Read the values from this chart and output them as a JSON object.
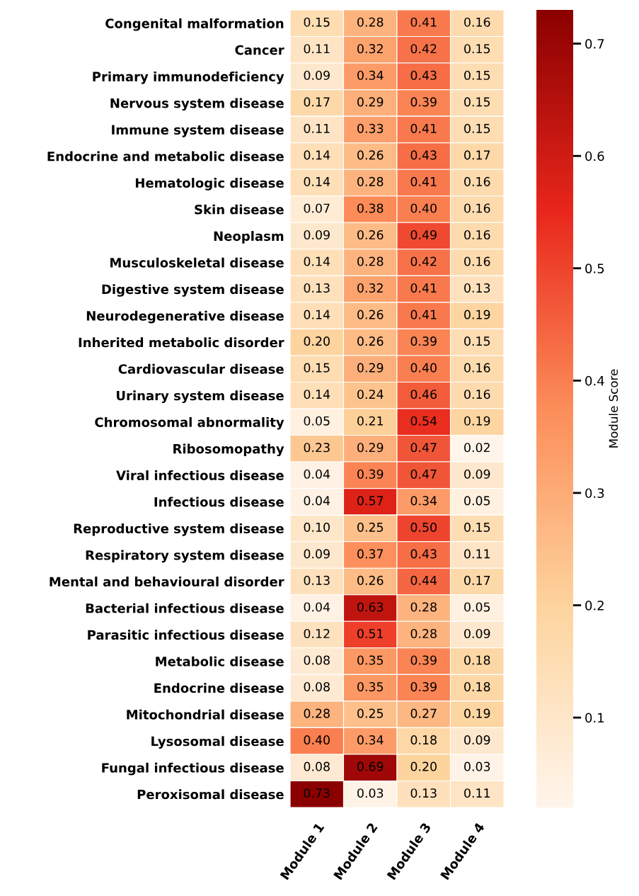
{
  "chart_data": {
    "type": "heatmap",
    "clabel": "Module Score",
    "categories": [
      "Module 1",
      "Module 2",
      "Module 3",
      "Module 4"
    ],
    "y_categories": [
      "Congenital malformation",
      "Cancer",
      "Primary immunodeficiency",
      "Nervous system disease",
      "Immune system disease",
      "Endocrine and metabolic disease",
      "Hematologic disease",
      "Skin disease",
      "Neoplasm",
      "Musculoskeletal disease",
      "Digestive system disease",
      "Neurodegenerative disease",
      "Inherited metabolic disorder",
      "Cardiovascular disease",
      "Urinary system disease",
      "Chromosomal abnormality",
      "Ribosomopathy",
      "Viral infectious disease",
      "Infectious disease",
      "Reproductive system disease",
      "Respiratory system disease",
      "Mental and behavioural disorder",
      "Bacterial infectious disease",
      "Parasitic infectious disease",
      "Metabolic disease",
      "Endocrine disease",
      "Mitochondrial disease",
      "Lysosomal disease",
      "Fungal infectious disease",
      "Peroxisomal disease"
    ],
    "cells": [
      [
        0.15,
        0.28,
        0.41,
        0.16
      ],
      [
        0.11,
        0.32,
        0.42,
        0.15
      ],
      [
        0.09,
        0.34,
        0.43,
        0.15
      ],
      [
        0.17,
        0.29,
        0.39,
        0.15
      ],
      [
        0.11,
        0.33,
        0.41,
        0.15
      ],
      [
        0.14,
        0.26,
        0.43,
        0.17
      ],
      [
        0.14,
        0.28,
        0.41,
        0.16
      ],
      [
        0.07,
        0.38,
        0.4,
        0.16
      ],
      [
        0.09,
        0.26,
        0.49,
        0.16
      ],
      [
        0.14,
        0.28,
        0.42,
        0.16
      ],
      [
        0.13,
        0.32,
        0.41,
        0.13
      ],
      [
        0.14,
        0.26,
        0.41,
        0.19
      ],
      [
        0.2,
        0.26,
        0.39,
        0.15
      ],
      [
        0.15,
        0.29,
        0.4,
        0.16
      ],
      [
        0.14,
        0.24,
        0.46,
        0.16
      ],
      [
        0.05,
        0.21,
        0.54,
        0.19
      ],
      [
        0.23,
        0.29,
        0.47,
        0.02
      ],
      [
        0.04,
        0.39,
        0.47,
        0.09
      ],
      [
        0.04,
        0.57,
        0.34,
        0.05
      ],
      [
        0.1,
        0.25,
        0.5,
        0.15
      ],
      [
        0.09,
        0.37,
        0.43,
        0.11
      ],
      [
        0.13,
        0.26,
        0.44,
        0.17
      ],
      [
        0.04,
        0.63,
        0.28,
        0.05
      ],
      [
        0.12,
        0.51,
        0.28,
        0.09
      ],
      [
        0.08,
        0.35,
        0.39,
        0.18
      ],
      [
        0.08,
        0.35,
        0.39,
        0.18
      ],
      [
        0.28,
        0.25,
        0.27,
        0.19
      ],
      [
        0.4,
        0.34,
        0.18,
        0.09
      ],
      [
        0.08,
        0.69,
        0.2,
        0.03
      ],
      [
        0.73,
        0.03,
        0.13,
        0.11
      ]
    ],
    "cell_labels": [
      [
        "0.15",
        "0.28",
        "0.41",
        "0.16"
      ],
      [
        "0.11",
        "0.32",
        "0.42",
        "0.15"
      ],
      [
        "0.09",
        "0.34",
        "0.43",
        "0.15"
      ],
      [
        "0.17",
        "0.29",
        "0.39",
        "0.15"
      ],
      [
        "0.11",
        "0.33",
        "0.41",
        "0.15"
      ],
      [
        "0.14",
        "0.26",
        "0.43",
        "0.17"
      ],
      [
        "0.14",
        "0.28",
        "0.41",
        "0.16"
      ],
      [
        "0.07",
        "0.38",
        "0.40",
        "0.16"
      ],
      [
        "0.09",
        "0.26",
        "0.49",
        "0.16"
      ],
      [
        "0.14",
        "0.28",
        "0.42",
        "0.16"
      ],
      [
        "0.13",
        "0.32",
        "0.41",
        "0.13"
      ],
      [
        "0.14",
        "0.26",
        "0.41",
        "0.19"
      ],
      [
        "0.20",
        "0.26",
        "0.39",
        "0.15"
      ],
      [
        "0.15",
        "0.29",
        "0.40",
        "0.16"
      ],
      [
        "0.14",
        "0.24",
        "0.46",
        "0.16"
      ],
      [
        "0.05",
        "0.21",
        "0.54",
        "0.19"
      ],
      [
        "0.23",
        "0.29",
        "0.47",
        "0.02"
      ],
      [
        "0.04",
        "0.39",
        "0.47",
        "0.09"
      ],
      [
        "0.04",
        "0.57",
        "0.34",
        "0.05"
      ],
      [
        "0.10",
        "0.25",
        "0.50",
        "0.15"
      ],
      [
        "0.09",
        "0.37",
        "0.43",
        "0.11"
      ],
      [
        "0.13",
        "0.26",
        "0.44",
        "0.17"
      ],
      [
        "0.04",
        "0.63",
        "0.28",
        "0.05"
      ],
      [
        "0.12",
        "0.51",
        "0.28",
        "0.09"
      ],
      [
        "0.08",
        "0.35",
        "0.39",
        "0.18"
      ],
      [
        "0.08",
        "0.35",
        "0.39",
        "0.18"
      ],
      [
        "0.28",
        "0.25",
        "0.27",
        "0.19"
      ],
      [
        "0.40",
        "0.34",
        "0.18",
        "0.09"
      ],
      [
        "0.08",
        "0.69",
        "0.20",
        "0.03"
      ],
      [
        "0.73",
        "0.03",
        "0.13",
        "0.11"
      ]
    ],
    "clim": [
      0.02,
      0.73
    ],
    "cticks": [
      0.1,
      0.2,
      0.3,
      0.4,
      0.5,
      0.6,
      0.7
    ],
    "colors": [
      "#fff5eb",
      "#fdd49e",
      "#fc8d59",
      "#e8261b",
      "#8b0000"
    ]
  }
}
